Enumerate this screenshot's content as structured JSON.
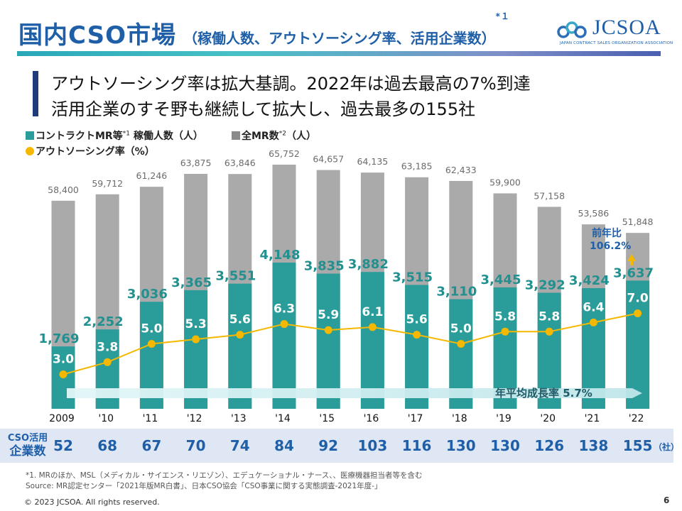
{
  "header": {
    "title": "国内CSO市場",
    "subtitle": "（稼働人数、アウトソーシング率、活用企業数）",
    "subtitle_note": "*１"
  },
  "logo": {
    "text": "JCSOA",
    "subtext": "JAPAN CONTRACT SALES ORGANIZATION ASSOCIATION",
    "colors": [
      "#2a6fb8",
      "#3aa8c8"
    ]
  },
  "message": {
    "line1": "アウトソーシング率は拡大基調。2022年は過去最高の7%到達",
    "line2": "活用企業のすそ野も継続して拡大し、過去最多の155社"
  },
  "legend": {
    "contract_label": "コントラクトMR等",
    "contract_note": "*1",
    "contract_suffix": " 稼働人数（人）",
    "total_label": "全MR数",
    "total_note": "*2",
    "total_suffix": "（人）",
    "rate_label": "アウトソーシング率（%）"
  },
  "chart_data": {
    "type": "bar",
    "categories": [
      "2009",
      "'10",
      "'11",
      "'12",
      "'13",
      "'14",
      "'15",
      "'16",
      "'17",
      "'18",
      "'19",
      "'20",
      "'21",
      "'22"
    ],
    "series": [
      {
        "name": "全MR数",
        "type": "bar",
        "color": "#aaaaaa",
        "values": [
          58400,
          59712,
          61246,
          63875,
          63846,
          65752,
          64657,
          64135,
          63185,
          62433,
          59900,
          57158,
          53586,
          51848
        ],
        "labels": [
          "58,400",
          "59,712",
          "61,246",
          "63,875",
          "63,846",
          "65,752",
          "64,657",
          "64,135",
          "63,185",
          "62,433",
          "59,900",
          "57,158",
          "53,586",
          "51,848"
        ]
      },
      {
        "name": "コントラクトMR等 稼働人数",
        "type": "bar",
        "color": "#2a9d9b",
        "values": [
          1769,
          2252,
          3036,
          3365,
          3551,
          4148,
          3835,
          3882,
          3515,
          3110,
          3445,
          3292,
          3424,
          3637
        ],
        "labels": [
          "1,769",
          "2,252",
          "3,036",
          "3,365",
          "3,551",
          "4,148",
          "3,835",
          "3,882",
          "3,515",
          "3,110",
          "3,445",
          "3,292",
          "3,424",
          "3,637"
        ]
      },
      {
        "name": "アウトソーシング率",
        "type": "line",
        "color": "#f5b800",
        "values": [
          3.0,
          3.8,
          5.0,
          5.3,
          5.6,
          6.3,
          5.9,
          6.1,
          5.6,
          5.0,
          5.8,
          5.8,
          6.4,
          7.0
        ],
        "labels": [
          "3.0",
          "3.8",
          "5.0",
          "5.3",
          "5.6",
          "6.3",
          "5.9",
          "6.1",
          "5.6",
          "5.0",
          "5.8",
          "5.8",
          "6.4",
          "7.0"
        ]
      }
    ],
    "annotations": {
      "growth": "年平均成長率 5.7%",
      "yoy_label": "前年比",
      "yoy_value": "106.2%"
    },
    "grid": false
  },
  "cso": {
    "label_line1": "CSO活用",
    "label_line2": "企業数",
    "values": [
      "52",
      "68",
      "67",
      "70",
      "74",
      "84",
      "92",
      "103",
      "116",
      "130",
      "130",
      "126",
      "138",
      "155"
    ],
    "unit": "（社）"
  },
  "footnotes": {
    "line1": "*1. MRのほか、MSL（メディカル・サイエンス・リエゾン）、エデュケーショナル・ナース、、医療機器担当者等を含む",
    "line2": "Source: MR認定センター「2021年版MR白書」、日本CSO協会「CSO事業に関する実態調査-2021年度-」"
  },
  "copyright": "© 2023 JCSOA. All rights reserved.",
  "page_number": "6"
}
